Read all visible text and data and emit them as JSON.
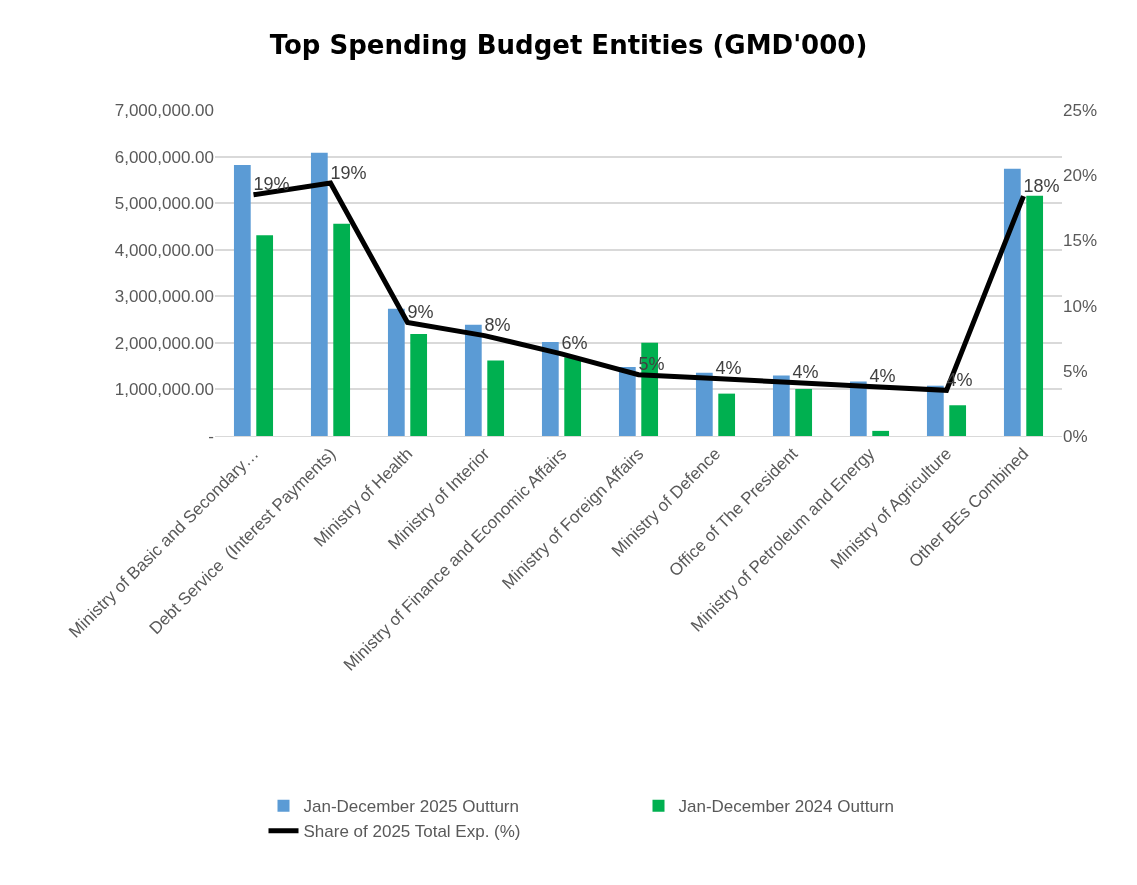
{
  "chart_data": {
    "type": "bar",
    "title": "Top Spending Budget Entities (GMD'000)",
    "categories": [
      "Ministry of Basic and Secondary…",
      "Debt Service  (Interest Payments)",
      "Ministry of Health",
      "Ministry of Interior",
      "Ministry of Finance and Economic Affairs",
      "Ministry of Foreign Affairs",
      "Ministry of Defence",
      "Office of The President",
      "Ministry of Petroleum and Energy",
      "Ministry of Agriculture",
      "Other BEs Combined"
    ],
    "series": [
      {
        "name": "Jan-December 2025 Outturn",
        "color": "#5b9bd5",
        "values": [
          5820000,
          6080000,
          2730000,
          2390000,
          2020000,
          1480000,
          1360000,
          1300000,
          1170000,
          1080000,
          5740000
        ]
      },
      {
        "name": "Jan-December 2024 Outturn",
        "color": "#00b050",
        "values": [
          4310000,
          4560000,
          2190000,
          1620000,
          1690000,
          2000000,
          910000,
          1010000,
          110000,
          660000,
          5160000
        ]
      },
      {
        "name": "Share of 2025 Total Exp. (%)",
        "type": "line",
        "axis": "y2",
        "color": "#000000",
        "values": [
          18.5,
          19.4,
          8.7,
          7.7,
          6.3,
          4.7,
          4.4,
          4.1,
          3.8,
          3.5,
          18.4
        ],
        "value_labels": [
          "19%",
          "19%",
          "9%",
          "8%",
          "6%",
          "5%",
          "4%",
          "4%",
          "4%",
          "4%",
          "18%"
        ]
      }
    ],
    "ylim": [
      0,
      7000000
    ],
    "yticks": [
      {
        "value": 0,
        "label": "-"
      },
      {
        "value": 1000000,
        "label": "1,000,000.00"
      },
      {
        "value": 2000000,
        "label": "2,000,000.00"
      },
      {
        "value": 3000000,
        "label": "3,000,000.00"
      },
      {
        "value": 4000000,
        "label": "4,000,000.00"
      },
      {
        "value": 5000000,
        "label": "5,000,000.00"
      },
      {
        "value": 6000000,
        "label": "6,000,000.00"
      },
      {
        "value": 7000000,
        "label": "7,000,000.00"
      }
    ],
    "y2lim": [
      0,
      25
    ],
    "y2ticks": [
      {
        "value": 0,
        "label": "0%"
      },
      {
        "value": 5,
        "label": "5%"
      },
      {
        "value": 10,
        "label": "10%"
      },
      {
        "value": 15,
        "label": "15%"
      },
      {
        "value": 20,
        "label": "20%"
      },
      {
        "value": 25,
        "label": "25%"
      }
    ],
    "grid": "y",
    "legend": "bottom",
    "marker": "none",
    "line_style": "solid"
  }
}
